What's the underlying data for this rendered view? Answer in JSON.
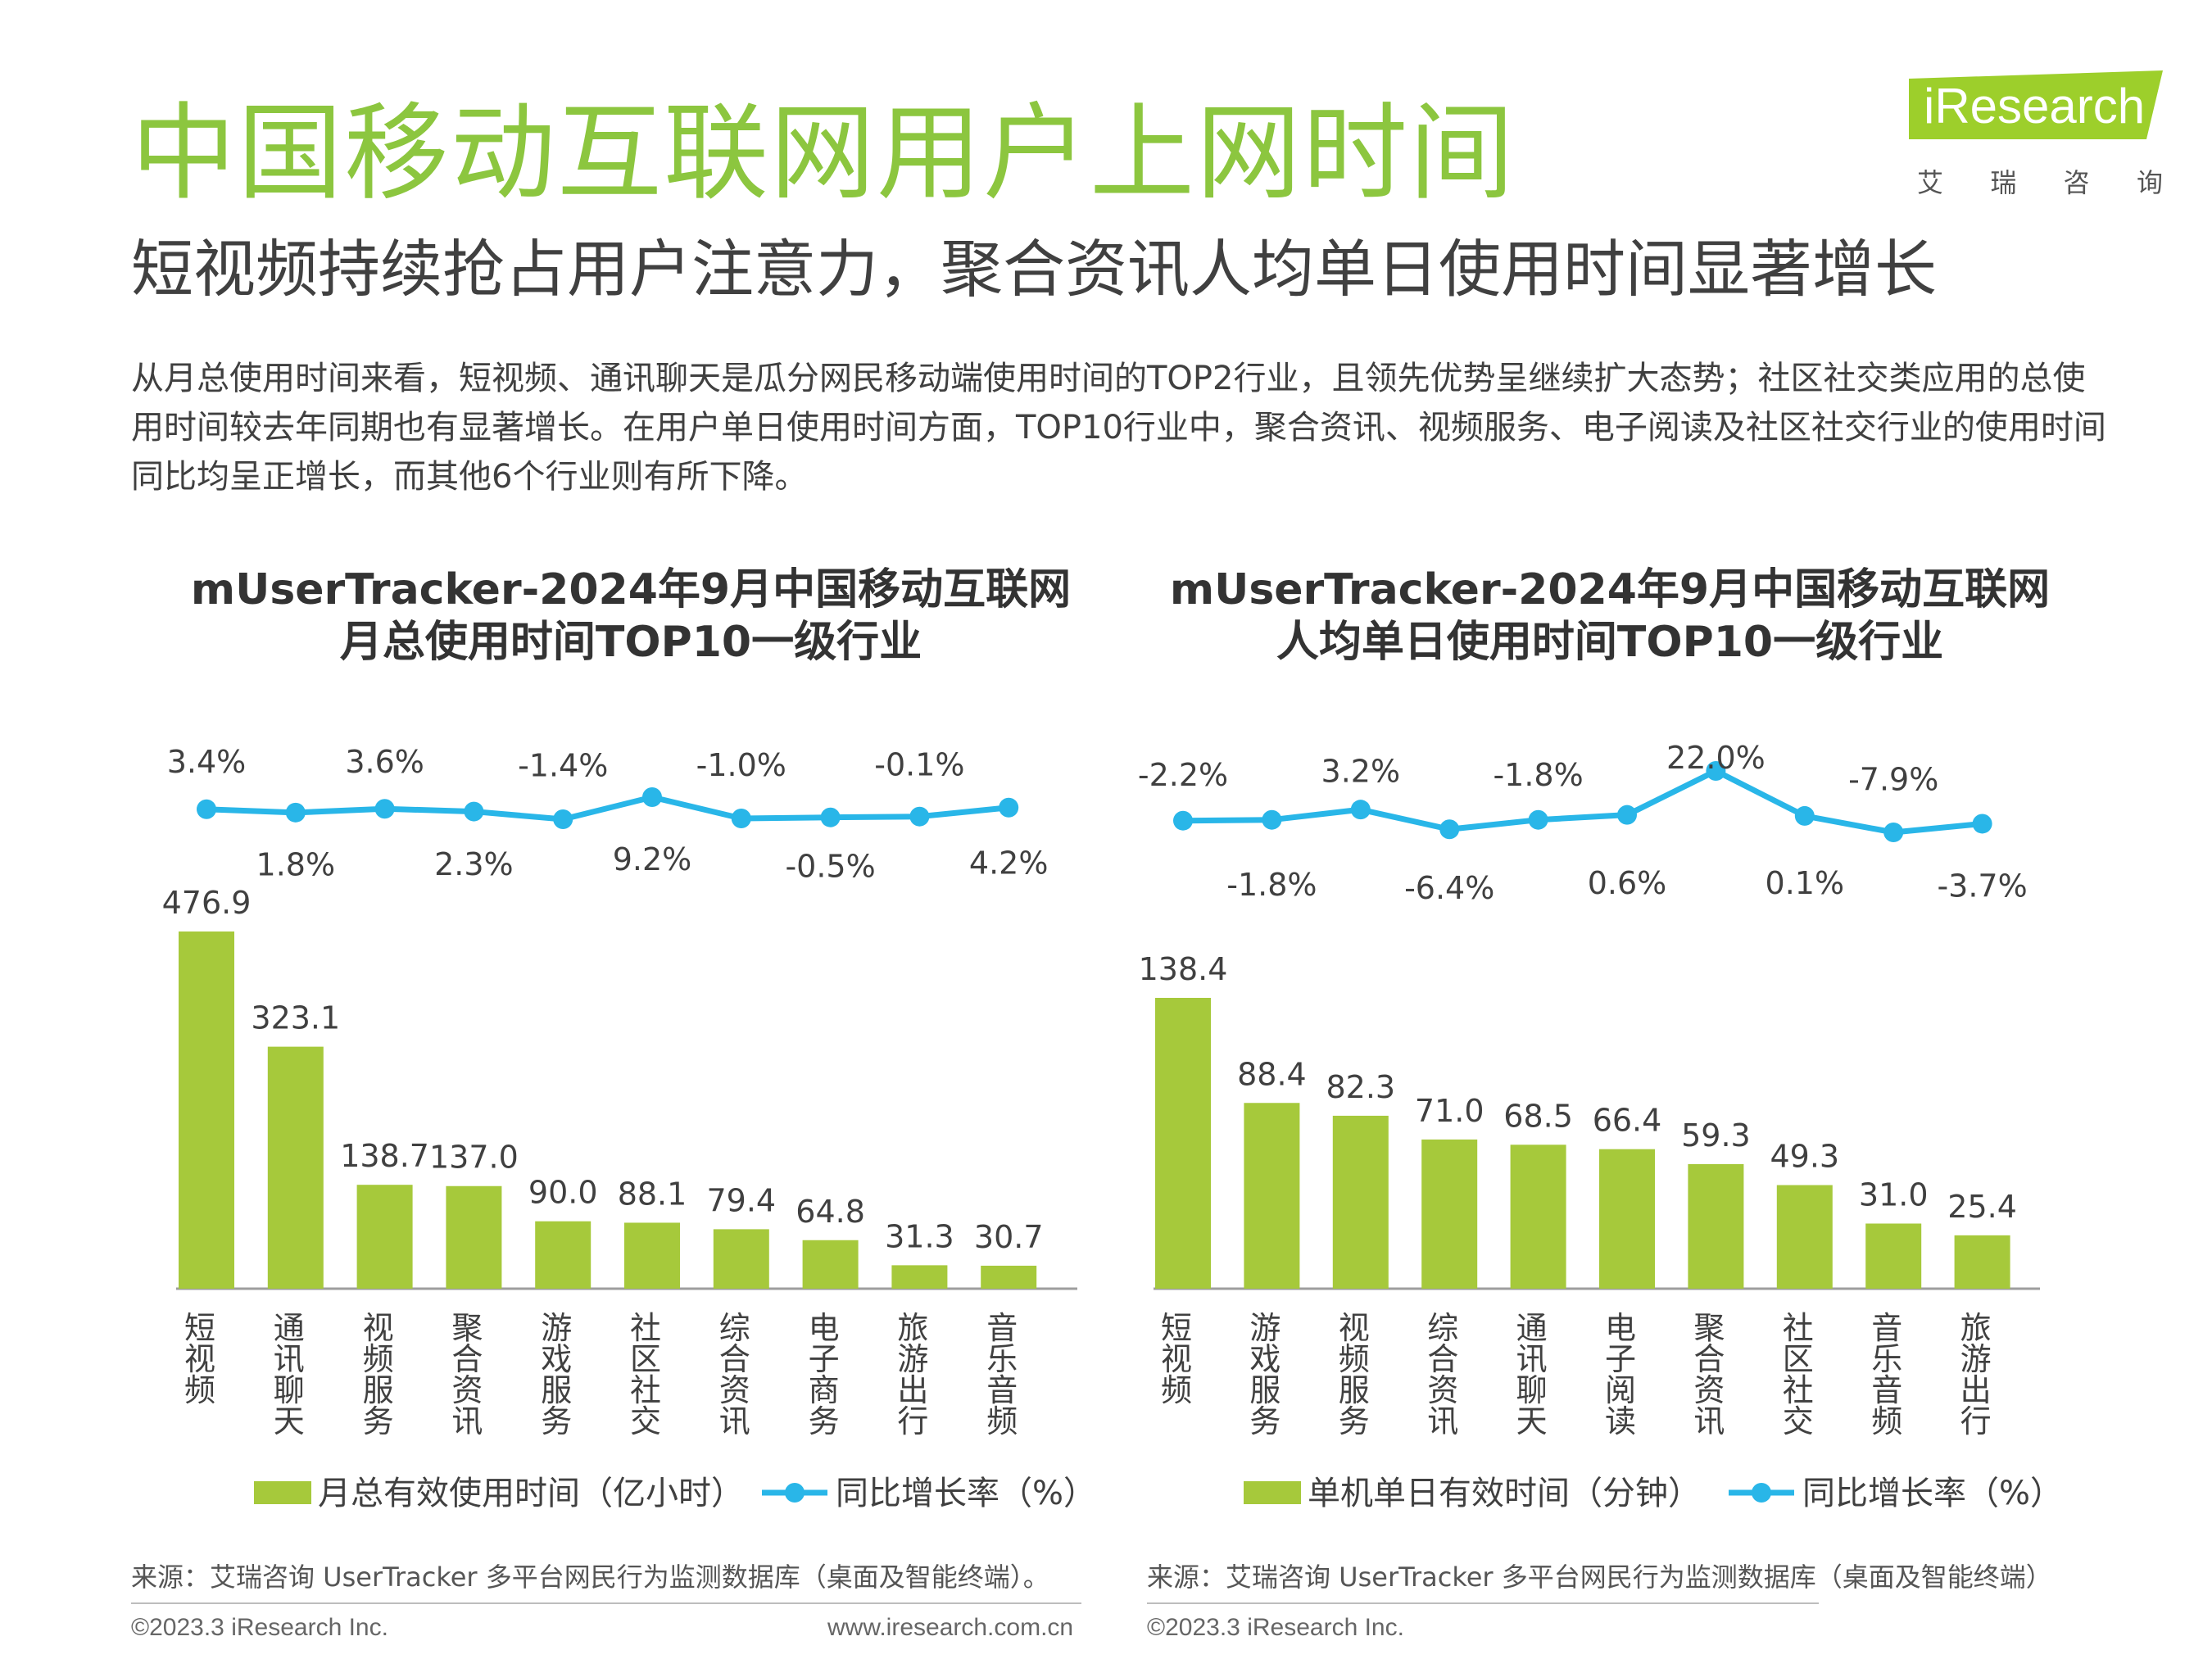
{
  "header": {
    "title": "中国移动互联网用户上网时间",
    "subtitle": "短视频持续抢占用户注意力，聚合资讯人均单日使用时间显著增长",
    "intro": "从月总使用时间来看，短视频、通讯聊天是瓜分网民移动端使用时间的TOP2行业，且领先优势呈继续扩大态势；社区社交类应用的总使用时间较去年同期也有显著增长。在用户单日使用时间方面，TOP10行业中，聚合资讯、视频服务、电子阅读及社区社交行业的使用时间同比均呈正增长，而其他6个行业则有所下降。"
  },
  "logo": {
    "text": "iResearch",
    "sub": [
      "艾",
      "瑞",
      "咨",
      "询"
    ]
  },
  "colors": {
    "title_green": "#8cc63f",
    "bar": "#a6c93b",
    "line": "#29b6e8"
  },
  "chart_data": [
    {
      "type": "bar",
      "title_lines": [
        "mUserTracker-2024年9月中国移动互联网",
        "月总使用时间TOP10一级行业"
      ],
      "categories": [
        "短视频",
        "通讯聊天",
        "视频服务",
        "聚合资讯",
        "游戏服务",
        "社区社交",
        "综合资讯",
        "电子商务",
        "旅游出行",
        "音乐音频"
      ],
      "series": [
        {
          "name": "月总有效使用时间（亿小时）",
          "kind": "bar",
          "values": [
            476.9,
            323.1,
            138.7,
            137.0,
            90.0,
            88.1,
            79.4,
            64.8,
            31.3,
            30.7
          ],
          "labels": [
            "476.9",
            "323.1",
            "138.7",
            "137.0",
            "90.0",
            "88.1",
            "79.4",
            "64.8",
            "31.3",
            "30.7"
          ]
        },
        {
          "name": "同比增长率（%）",
          "kind": "line",
          "values": [
            3.4,
            1.8,
            3.6,
            2.3,
            -1.4,
            9.2,
            -1.0,
            -0.5,
            -0.1,
            4.2
          ],
          "labels": [
            "3.4%",
            "1.8%",
            "3.6%",
            "2.3%",
            "-1.4%",
            "9.2%",
            "-1.0%",
            "-0.5%",
            "-0.1%",
            "4.2%"
          ]
        }
      ],
      "legend": "bottom"
    },
    {
      "type": "bar",
      "title_lines": [
        "mUserTracker-2024年9月中国移动互联网",
        "人均单日使用时间TOP10一级行业"
      ],
      "categories": [
        "短视频",
        "游戏服务",
        "视频服务",
        "综合资讯",
        "通讯聊天",
        "电子阅读",
        "聚合资讯",
        "社区社交",
        "音乐音频",
        "旅游出行"
      ],
      "series": [
        {
          "name": "单机单日有效时间（分钟）",
          "kind": "bar",
          "values": [
            138.4,
            88.4,
            82.3,
            71.0,
            68.5,
            66.4,
            59.3,
            49.3,
            31.0,
            25.4
          ],
          "labels": [
            "138.4",
            "88.4",
            "82.3",
            "71.0",
            "68.5",
            "66.4",
            "59.3",
            "49.3",
            "31.0",
            "25.4"
          ]
        },
        {
          "name": "同比增长率（%）",
          "kind": "line",
          "values": [
            -2.2,
            -1.8,
            3.2,
            -6.4,
            -1.8,
            0.6,
            22.0,
            0.1,
            -7.9,
            -3.7
          ],
          "labels": [
            "-2.2%",
            "-1.8%",
            "3.2%",
            "-6.4%",
            "-1.8%",
            "0.6%",
            "22.0%",
            "0.1%",
            "-7.9%",
            "-3.7%"
          ]
        }
      ],
      "legend": "bottom"
    }
  ],
  "sources": [
    "来源：艾瑞咨询 UserTracker 多平台网民行为监测数据库（桌面及智能终端）。",
    "来源：艾瑞咨询 UserTracker 多平台网民行为监测数据库（桌面及智能终端）"
  ],
  "footer": {
    "left_copyright": "©2023.3 iResearch Inc.",
    "left_url": "www.iresearch.com.cn",
    "right_copyright": "©2023.3 iResearch Inc."
  }
}
